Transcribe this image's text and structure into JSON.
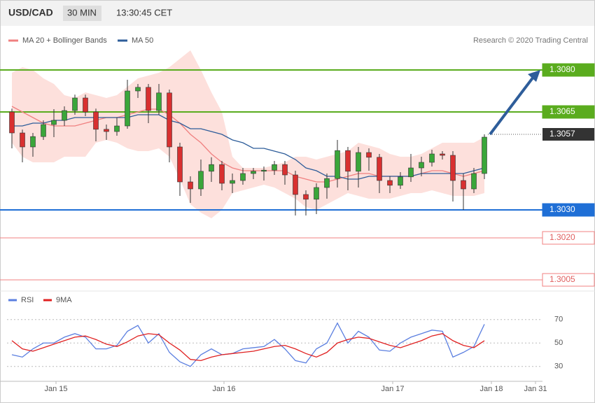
{
  "header": {
    "symbol": "USD/CAD",
    "interval": "30 MIN",
    "time": "13:30:45 CET",
    "credit": "Research © 2020 Trading Central"
  },
  "chart_data": [
    {
      "type": "candlestick",
      "open": [
        1.3065,
        1.30575,
        1.30525,
        1.30562,
        1.30605,
        1.3062,
        1.30655,
        1.307,
        1.3065,
        1.30588,
        1.3058,
        1.306,
        1.30725,
        1.30738,
        1.30655,
        1.30718,
        1.30525,
        1.304,
        1.30375,
        1.30438,
        1.30462,
        1.30395,
        1.30405,
        1.3043,
        1.30438,
        1.30442,
        1.30462,
        1.30425,
        1.30355,
        1.30338,
        1.3038,
        1.30412,
        1.30512,
        1.30438,
        1.30505,
        1.30488,
        1.30405,
        1.30388,
        1.30418,
        1.3045,
        1.3047,
        1.305,
        1.30495,
        1.30405,
        1.30375,
        1.3043
      ],
      "high": [
        1.30662,
        1.30587,
        1.30575,
        1.3062,
        1.3066,
        1.3067,
        1.30712,
        1.30712,
        1.30662,
        1.30605,
        1.3063,
        1.30765,
        1.3075,
        1.3075,
        1.3075,
        1.3073,
        1.3054,
        1.3042,
        1.3048,
        1.30488,
        1.30475,
        1.3043,
        1.3045,
        1.3045,
        1.30455,
        1.30475,
        1.30475,
        1.3044,
        1.3037,
        1.30395,
        1.3043,
        1.3055,
        1.30525,
        1.30525,
        1.3052,
        1.305,
        1.3042,
        1.30435,
        1.305,
        1.3049,
        1.30515,
        1.3051,
        1.3051,
        1.3043,
        1.3045,
        1.3057
      ],
      "low": [
        1.3052,
        1.3047,
        1.3049,
        1.3055,
        1.3056,
        1.306,
        1.3064,
        1.30635,
        1.30545,
        1.3055,
        1.30565,
        1.3059,
        1.307,
        1.3061,
        1.3064,
        1.3047,
        1.3035,
        1.30325,
        1.3035,
        1.304,
        1.3037,
        1.3036,
        1.3039,
        1.3041,
        1.30405,
        1.30425,
        1.3039,
        1.3028,
        1.3028,
        1.30285,
        1.3034,
        1.3038,
        1.3037,
        1.3038,
        1.3044,
        1.3036,
        1.3036,
        1.30375,
        1.304,
        1.3042,
        1.30455,
        1.3048,
        1.3033,
        1.303,
        1.3036,
        1.3041
      ],
      "close": [
        1.30575,
        1.30525,
        1.30562,
        1.30605,
        1.3062,
        1.30655,
        1.307,
        1.3065,
        1.30588,
        1.3058,
        1.306,
        1.30725,
        1.30738,
        1.30655,
        1.30718,
        1.30525,
        1.304,
        1.30375,
        1.30438,
        1.30462,
        1.30395,
        1.30405,
        1.3043,
        1.30438,
        1.30442,
        1.30462,
        1.30425,
        1.30355,
        1.30338,
        1.3038,
        1.30412,
        1.30512,
        1.30438,
        1.30505,
        1.30488,
        1.30405,
        1.30388,
        1.30418,
        1.3045,
        1.3047,
        1.305,
        1.30495,
        1.30405,
        1.30375,
        1.3043,
        1.3056
      ],
      "up_color": "#3aa63a",
      "down_color": "#d83030",
      "series": [
        {
          "name": "MA 20 + Bollinger Bands",
          "color": "#f08080",
          "band_color": "#fde0dc",
          "values": [
            1.3067,
            1.3065,
            1.3063,
            1.3061,
            1.306,
            1.306,
            1.306,
            1.3061,
            1.3062,
            1.3063,
            1.3063,
            1.3064,
            1.3065,
            1.3066,
            1.3066,
            1.3064,
            1.3061,
            1.3057,
            1.3054,
            1.305,
            1.3047,
            1.3045,
            1.3044,
            1.3044,
            1.3044,
            1.3044,
            1.3044,
            1.3042,
            1.3041,
            1.304,
            1.304,
            1.3041,
            1.3042,
            1.3043,
            1.3043,
            1.3042,
            1.3042,
            1.3042,
            1.3042,
            1.3043,
            1.3044,
            1.3044,
            1.3043,
            1.3042,
            1.3043,
            1.3044
          ],
          "upper": [
            1.3079,
            1.3081,
            1.308,
            1.3077,
            1.3075,
            1.3071,
            1.307,
            1.3072,
            1.3071,
            1.307,
            1.3071,
            1.3074,
            1.3077,
            1.3078,
            1.3079,
            1.3081,
            1.3084,
            1.3087,
            1.308,
            1.3072,
            1.3065,
            1.3049,
            1.3045,
            1.3045,
            1.3045,
            1.3046,
            1.3047,
            1.3049,
            1.3049,
            1.3048,
            1.3049,
            1.305,
            1.3051,
            1.3054,
            1.3053,
            1.3052,
            1.305,
            1.3049,
            1.3049,
            1.305,
            1.3052,
            1.3054,
            1.3054,
            1.3054,
            1.3054,
            1.3056
          ],
          "lower": [
            1.3054,
            1.3049,
            1.3047,
            1.3047,
            1.3047,
            1.3049,
            1.3049,
            1.3049,
            1.3054,
            1.3055,
            1.3054,
            1.3052,
            1.3051,
            1.3051,
            1.3052,
            1.3049,
            1.3041,
            1.3032,
            1.3029,
            1.3027,
            1.303,
            1.3036,
            1.3037,
            1.3038,
            1.3039,
            1.3038,
            1.3036,
            1.3034,
            1.3031,
            1.303,
            1.3032,
            1.3034,
            1.3036,
            1.3035,
            1.3034,
            1.3034,
            1.3034,
            1.3035,
            1.3036,
            1.3036,
            1.3037,
            1.3036,
            1.3035,
            1.3035,
            1.3035,
            1.3036
          ]
        },
        {
          "name": "MA 50",
          "color": "#2e5d9a",
          "values": [
            1.306,
            1.306,
            1.3061,
            1.3061,
            1.3062,
            1.3062,
            1.3063,
            1.3063,
            1.3063,
            1.3063,
            1.3063,
            1.3063,
            1.3064,
            1.3064,
            1.3064,
            1.3062,
            1.3061,
            1.3059,
            1.3059,
            1.3058,
            1.3057,
            1.3055,
            1.3054,
            1.3052,
            1.3052,
            1.3051,
            1.305,
            1.3048,
            1.3045,
            1.3044,
            1.3042,
            1.3042,
            1.3041,
            1.3041,
            1.3042,
            1.3042,
            1.3042,
            1.3042,
            1.3042,
            1.3043,
            1.3043,
            1.3043,
            1.3043,
            1.3043,
            1.3044,
            1.3045
          ]
        }
      ],
      "levels": [
        {
          "value": 1.308,
          "label": "1.3080",
          "color": "#5aac1e"
        },
        {
          "value": 1.3065,
          "label": "1.3065",
          "color": "#5aac1e"
        },
        {
          "value": 1.303,
          "label": "1.3030",
          "color": "#1f6fd6"
        },
        {
          "value": 1.302,
          "label": "1.3020",
          "color": "#f08080"
        },
        {
          "value": 1.3005,
          "label": "1.3005",
          "color": "#f08080"
        }
      ],
      "current": {
        "value": 1.3057,
        "label": "1.3057"
      },
      "ylim": [
        1.3002,
        1.3095
      ]
    },
    {
      "type": "line",
      "series": [
        {
          "name": "RSI",
          "color": "#5b7fe0",
          "values": [
            40,
            38,
            45,
            50,
            50,
            55,
            58,
            55,
            45,
            45,
            48,
            60,
            65,
            50,
            58,
            42,
            34,
            30,
            40,
            45,
            40,
            41,
            45,
            46,
            47,
            53,
            45,
            35,
            33,
            45,
            50,
            67,
            50,
            60,
            55,
            44,
            43,
            50,
            55,
            58,
            61,
            60,
            38,
            42,
            47,
            66
          ]
        },
        {
          "name": "9MA",
          "color": "#e02020",
          "values": [
            52,
            45,
            43,
            46,
            49,
            52,
            55,
            56,
            53,
            49,
            47,
            51,
            56,
            58,
            57,
            50,
            44,
            36,
            35,
            38,
            40,
            41,
            42,
            43,
            45,
            47,
            48,
            45,
            41,
            38,
            42,
            50,
            53,
            55,
            54,
            51,
            48,
            46,
            49,
            52,
            56,
            58,
            52,
            48,
            46,
            52
          ]
        }
      ],
      "ylim": [
        18,
        80
      ],
      "yticks": [
        30,
        50,
        70
      ],
      "x_labels": [
        "Jan 15",
        "Jan 16",
        "Jan 17",
        "Jan 18",
        "Jan 31"
      ]
    }
  ]
}
